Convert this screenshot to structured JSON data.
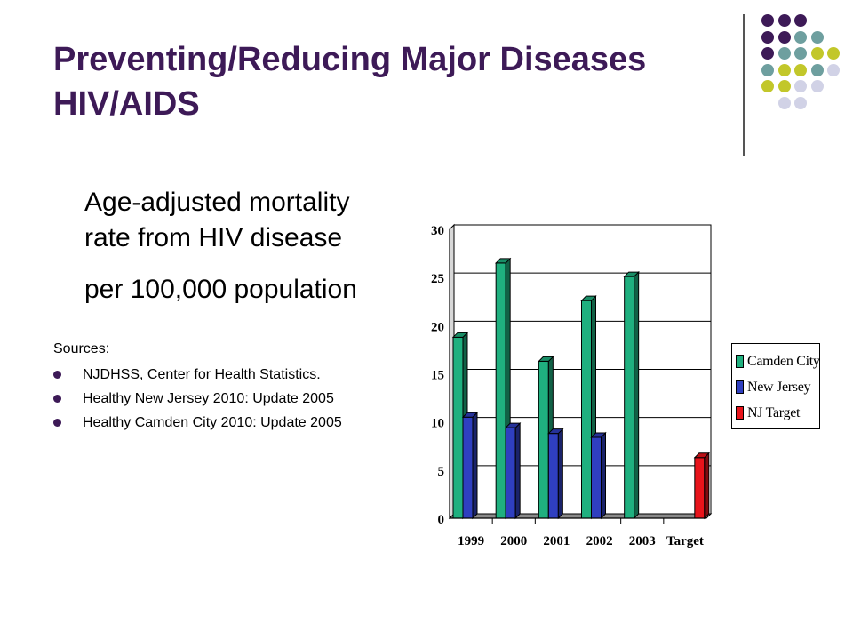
{
  "slide": {
    "title_line1": "Preventing/Reducing Major Diseases",
    "title_line2": "HIV/AIDS",
    "subtitle_line1": "Age-adjusted mortality",
    "subtitle_line2": "rate from HIV disease",
    "subtitle_line3": "per 100,000 population",
    "sources_heading": "Sources:",
    "sources": [
      "NJDHSS, Center for Health Statistics.",
      "Healthy New Jersey 2010:  Update 2005",
      "Healthy Camden City 2010:   Update 2005"
    ]
  },
  "decor": {
    "colors": {
      "purple": "#3d1a57",
      "teal": "#6e9f9f",
      "olive": "#c2c72a",
      "lavender": "#d1d2e6"
    },
    "dot_rows": [
      [
        "purple",
        "purple",
        "purple"
      ],
      [
        "purple",
        "purple",
        "teal",
        "teal"
      ],
      [
        "purple",
        "teal",
        "teal",
        "olive",
        "olive"
      ],
      [
        "teal",
        "olive",
        "olive",
        "teal",
        "lavender"
      ],
      [
        "olive",
        "olive",
        "lavender",
        "lavender"
      ],
      [
        "lavender",
        "lavender"
      ]
    ]
  },
  "chart_data": {
    "type": "bar",
    "categories": [
      "1999",
      "2000",
      "2001",
      "2002",
      "2003",
      "Target"
    ],
    "series": [
      {
        "name": "Camden City",
        "color": "#1fb07f",
        "values": [
          18.8,
          26.5,
          16.3,
          22.6,
          25.1,
          null
        ]
      },
      {
        "name": "New Jersey",
        "color": "#2f3fc0",
        "values": [
          10.5,
          9.4,
          8.8,
          8.4,
          null,
          null
        ]
      },
      {
        "name": "NJ Target",
        "color": "#e8141b",
        "values": [
          null,
          null,
          null,
          null,
          null,
          6.3
        ]
      }
    ],
    "ylim": [
      0,
      30
    ],
    "yticks": [
      0,
      5,
      10,
      15,
      20,
      25,
      30
    ],
    "grid": true,
    "legend": "right"
  }
}
